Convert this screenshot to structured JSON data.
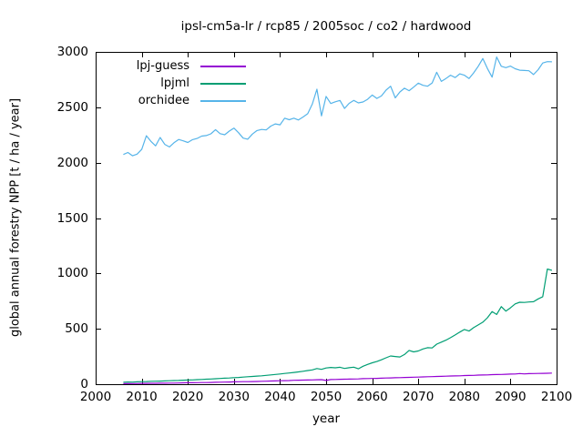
{
  "colors": {
    "background": "#ffffff",
    "frame": "#000000",
    "text": "#000000"
  },
  "chart_data": {
    "type": "line",
    "title": "ipsl-cm5a-lr / rcp85 / 2005soc / co2 / hardwood",
    "xlabel": "year",
    "ylabel": "global annual forestry NPP [t / ha / year]",
    "xlim": [
      2000,
      2100
    ],
    "ylim": [
      0,
      3000
    ],
    "xticks": [
      2000,
      2010,
      2020,
      2030,
      2040,
      2050,
      2060,
      2070,
      2080,
      2090,
      2100
    ],
    "yticks": [
      0,
      500,
      1000,
      1500,
      2000,
      2500,
      3000
    ],
    "grid": false,
    "legend_position": "top-left-inside",
    "x": [
      2006,
      2007,
      2008,
      2009,
      2010,
      2011,
      2012,
      2013,
      2014,
      2015,
      2016,
      2017,
      2018,
      2019,
      2020,
      2021,
      2022,
      2023,
      2024,
      2025,
      2026,
      2027,
      2028,
      2029,
      2030,
      2031,
      2032,
      2033,
      2034,
      2035,
      2036,
      2037,
      2038,
      2039,
      2040,
      2041,
      2042,
      2043,
      2044,
      2045,
      2046,
      2047,
      2048,
      2049,
      2050,
      2051,
      2052,
      2053,
      2054,
      2055,
      2056,
      2057,
      2058,
      2059,
      2060,
      2061,
      2062,
      2063,
      2064,
      2065,
      2066,
      2067,
      2068,
      2069,
      2070,
      2071,
      2072,
      2073,
      2074,
      2075,
      2076,
      2077,
      2078,
      2079,
      2080,
      2081,
      2082,
      2083,
      2084,
      2085,
      2086,
      2087,
      2088,
      2089,
      2090,
      2091,
      2092,
      2093,
      2094,
      2095,
      2096,
      2097,
      2098,
      2099
    ],
    "series": [
      {
        "name": "lpj-guess",
        "color": "#9400d3",
        "values": [
          5,
          5,
          6,
          6,
          7,
          7,
          8,
          8,
          9,
          9,
          10,
          10,
          11,
          12,
          13,
          13,
          14,
          15,
          15,
          16,
          17,
          18,
          19,
          20,
          21,
          22,
          23,
          23,
          24,
          25,
          26,
          27,
          29,
          30,
          31,
          32,
          33,
          35,
          36,
          37,
          38,
          39,
          40,
          41,
          34,
          42,
          43,
          44,
          45,
          46,
          47,
          48,
          50,
          51,
          52,
          53,
          54,
          56,
          57,
          58,
          59,
          61,
          62,
          63,
          64,
          66,
          67,
          68,
          70,
          71,
          72,
          74,
          75,
          76,
          78,
          79,
          80,
          82,
          83,
          84,
          86,
          87,
          88,
          90,
          91,
          92,
          96,
          93,
          95,
          96,
          97,
          98,
          99,
          100
        ]
      },
      {
        "name": "lpjml",
        "color": "#009e73",
        "values": [
          18,
          20,
          19,
          21,
          23,
          24,
          26,
          27,
          28,
          30,
          31,
          33,
          34,
          36,
          38,
          39,
          41,
          43,
          45,
          47,
          49,
          52,
          54,
          56,
          59,
          61,
          64,
          67,
          70,
          73,
          76,
          80,
          84,
          88,
          92,
          97,
          101,
          106,
          111,
          117,
          123,
          129,
          141,
          134,
          146,
          151,
          148,
          153,
          142,
          149,
          154,
          139,
          162,
          178,
          193,
          205,
          220,
          238,
          255,
          250,
          246,
          268,
          305,
          292,
          300,
          318,
          330,
          327,
          362,
          380,
          398,
          420,
          445,
          470,
          494,
          480,
          510,
          535,
          560,
          600,
          655,
          630,
          700,
          660,
          690,
          725,
          740,
          738,
          742,
          745,
          770,
          790,
          1040,
          1028
        ]
      },
      {
        "name": "orchidee",
        "color": "#56b4e9",
        "values": [
          2074,
          2092,
          2062,
          2077,
          2120,
          2243,
          2192,
          2152,
          2227,
          2165,
          2142,
          2180,
          2209,
          2197,
          2182,
          2208,
          2218,
          2240,
          2245,
          2260,
          2298,
          2262,
          2252,
          2285,
          2312,
          2270,
          2222,
          2212,
          2258,
          2290,
          2300,
          2296,
          2330,
          2350,
          2342,
          2402,
          2388,
          2402,
          2385,
          2412,
          2442,
          2528,
          2663,
          2422,
          2598,
          2534,
          2550,
          2562,
          2490,
          2536,
          2562,
          2540,
          2548,
          2572,
          2610,
          2580,
          2602,
          2655,
          2690,
          2585,
          2638,
          2672,
          2650,
          2682,
          2718,
          2698,
          2690,
          2720,
          2816,
          2734,
          2760,
          2790,
          2768,
          2802,
          2790,
          2760,
          2810,
          2870,
          2940,
          2850,
          2772,
          2954,
          2870,
          2858,
          2872,
          2848,
          2835,
          2832,
          2830,
          2795,
          2840,
          2900,
          2912,
          2910
        ]
      }
    ]
  }
}
